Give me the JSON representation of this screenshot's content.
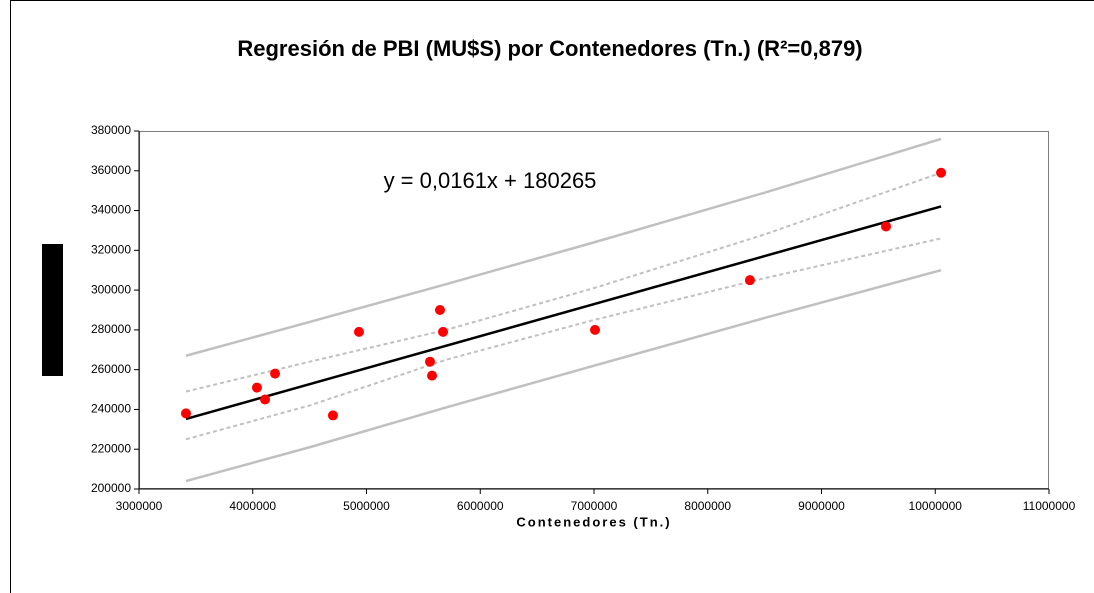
{
  "chart_data": {
    "type": "scatter",
    "title": "Regresión de PBI (MU$S) por Contenedores (Tn.) (R²=0,879)",
    "xlabel": "Contenedores (Tn.)",
    "annotation": "y = 0,0161x + 180265",
    "xlim": [
      3000000,
      11000000
    ],
    "xticks": [
      3000000,
      4000000,
      5000000,
      6000000,
      7000000,
      8000000,
      9000000,
      10000000,
      11000000
    ],
    "ylim": [
      200000,
      380000
    ],
    "yticks": [
      200000,
      220000,
      240000,
      260000,
      280000,
      300000,
      320000,
      340000,
      360000,
      380000
    ],
    "points": {
      "color": "#ff0000",
      "x": [
        3413000,
        4037000,
        4108000,
        4196000,
        4705000,
        4934000,
        5558000,
        5576000,
        5646000,
        5673000,
        7009000,
        8371000,
        9567000,
        10051000
      ],
      "y": [
        238000,
        251000,
        245000,
        258000,
        237000,
        279000,
        264000,
        257000,
        290000,
        279000,
        280000,
        305000,
        332000,
        359000
      ]
    },
    "lines": [
      {
        "color": "#000000",
        "dash": false,
        "x": [
          3413000,
          10051000
        ],
        "y": [
          235213,
          342086
        ]
      },
      {
        "color": "#c0c0c0",
        "dash": false,
        "x": [
          3413000,
          4500000,
          5700000,
          7000000,
          8500000,
          10051000
        ],
        "y": [
          267000,
          284000,
          303000,
          324000,
          349000,
          376000
        ]
      },
      {
        "color": "#c0c0c0",
        "dash": false,
        "x": [
          3413000,
          4500000,
          5700000,
          7000000,
          8500000,
          10051000
        ],
        "y": [
          204000,
          221000,
          241000,
          262000,
          286000,
          310000
        ]
      },
      {
        "color": "#c0c0c0",
        "dash": true,
        "x": [
          3413000,
          4500000,
          5700000,
          7000000,
          8500000,
          10051000
        ],
        "y": [
          249000,
          264000,
          280000,
          301000,
          328000,
          359000
        ]
      },
      {
        "color": "#c0c0c0",
        "dash": true,
        "x": [
          3413000,
          4500000,
          5700000,
          7000000,
          8500000,
          10051000
        ],
        "y": [
          225000,
          242000,
          265000,
          285000,
          306000,
          326000
        ]
      }
    ]
  }
}
